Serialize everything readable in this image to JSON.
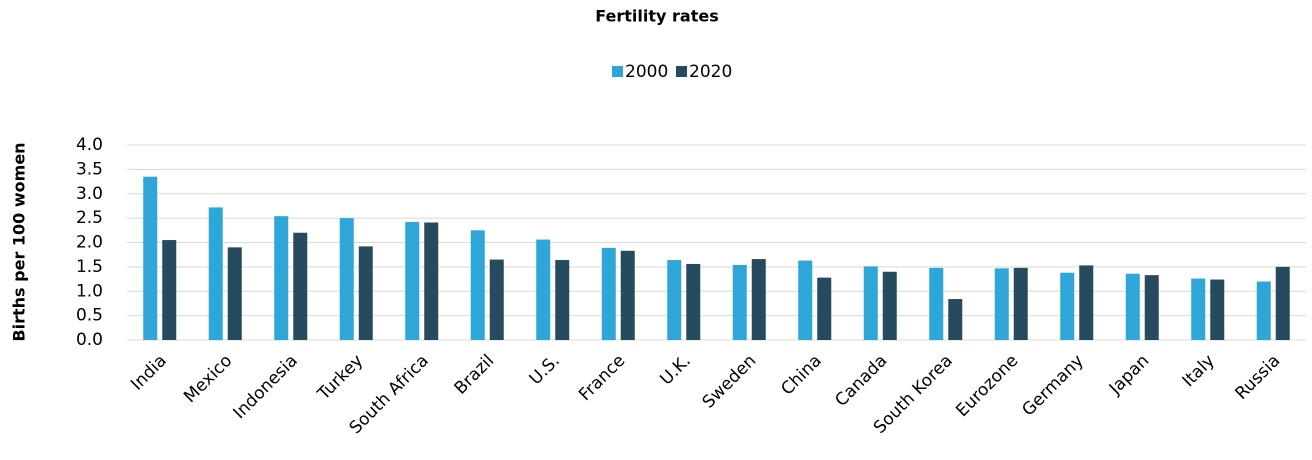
{
  "chart_data": {
    "type": "bar",
    "title": "Fertility rates",
    "y_label": "Births per 100 women",
    "categories": [
      "India",
      "Mexico",
      "Indonesia",
      "Turkey",
      "South Africa",
      "Brazil",
      "U.S.",
      "France",
      "U.K.",
      "Sweden",
      "China",
      "Canada",
      "South Korea",
      "Eurozone",
      "Germany",
      "Japan",
      "Italy",
      "Russia"
    ],
    "series": [
      {
        "name": "2000",
        "color": "#2ea6d8",
        "values": [
          3.35,
          2.72,
          2.54,
          2.5,
          2.42,
          2.25,
          2.06,
          1.89,
          1.64,
          1.54,
          1.63,
          1.51,
          1.48,
          1.47,
          1.38,
          1.36,
          1.26,
          1.2
        ]
      },
      {
        "name": "2020",
        "color": "#264a5e",
        "values": [
          2.05,
          1.9,
          2.2,
          1.92,
          2.41,
          1.65,
          1.64,
          1.83,
          1.56,
          1.66,
          1.28,
          1.4,
          0.84,
          1.48,
          1.53,
          1.33,
          1.24,
          1.5
        ]
      }
    ],
    "ylim": [
      0,
      4
    ],
    "yticks": [
      {
        "value": 0,
        "label": "0.0"
      },
      0.5,
      {
        "value": 1,
        "label": "1.0"
      },
      1.5,
      {
        "value": 2,
        "label": "2.0"
      },
      2.5,
      {
        "value": 3,
        "label": "3.0"
      },
      3.5,
      {
        "value": 4,
        "label": "4.0"
      }
    ],
    "grid": true,
    "legend": "top"
  }
}
